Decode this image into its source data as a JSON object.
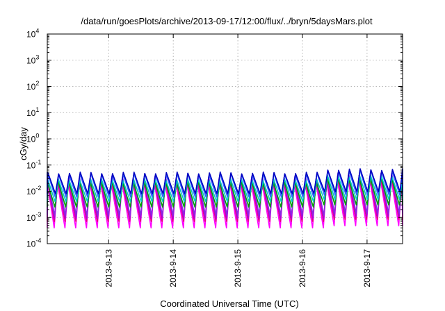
{
  "chart_data": {
    "type": "line",
    "title": "/data/run/goesPlots/archive/2013-09-17/12:00/flux/../bryn/5daysMars.plot",
    "xlabel": "Coordinated Universal Time (UTC)",
    "ylabel": "cGy/day",
    "yscale": "log",
    "ylim": [
      0.0001,
      10000
    ],
    "xlim": [
      "2013-09-12 01:12",
      "2013-09-17 13:12"
    ],
    "x_ticks": [
      "2013-9-13",
      "2013-9-14",
      "2013-9-15",
      "2013-9-16",
      "2013-9-17"
    ],
    "y_ticks": [
      {
        "base": "10",
        "exp": "-4",
        "value": 0.0001
      },
      {
        "base": "10",
        "exp": "-3",
        "value": 0.001
      },
      {
        "base": "10",
        "exp": "-2",
        "value": 0.01
      },
      {
        "base": "10",
        "exp": "-1",
        "value": 0.1
      },
      {
        "base": "10",
        "exp": "0",
        "value": 1
      },
      {
        "base": "10",
        "exp": "1",
        "value": 10
      },
      {
        "base": "10",
        "exp": "2",
        "value": 100
      },
      {
        "base": "10",
        "exp": "3",
        "value": 1000
      },
      {
        "base": "10",
        "exp": "4",
        "value": 10000
      }
    ],
    "grid": true,
    "legend": "none",
    "pattern": {
      "cycle_hours": 4,
      "cycles_per_day": 6,
      "late_high_from": "2013-09-16 08:00"
    },
    "series": [
      {
        "color": "#ff00ff",
        "peak": 0.022,
        "trough": 0.0004
      },
      {
        "color": "#e8007a",
        "peak": 0.028,
        "trough": 0.0007
      },
      {
        "color": "#b000d8",
        "peak": 0.03,
        "trough": 0.0009
      },
      {
        "color": "#8a2be2",
        "peak": 0.034,
        "trough": 0.0012
      },
      {
        "color": "#00a000",
        "peak": 0.022,
        "trough": 0.0025
      },
      {
        "color": "#00c8c8",
        "peak": 0.028,
        "trough": 0.004
      },
      {
        "color": "#3060ff",
        "peak": 0.045,
        "trough": 0.006
      },
      {
        "color": "#0000c0",
        "peak": 0.05,
        "trough": 0.008
      }
    ]
  }
}
